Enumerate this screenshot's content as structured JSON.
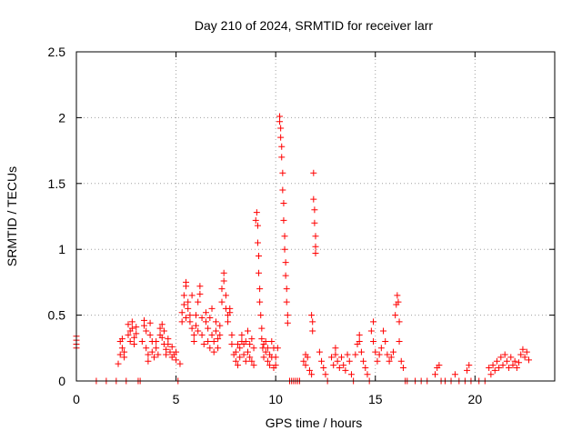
{
  "chart_data": {
    "type": "scatter",
    "title": "Day 210 of 2024, SRMTID for receiver larr",
    "xlabel": "GPS time / hours",
    "ylabel": "SRMTID / TECUs",
    "xlim": [
      0,
      24
    ],
    "ylim": [
      0,
      2.5
    ],
    "xticks": [
      0,
      5,
      10,
      15,
      20
    ],
    "xtick_labels": [
      "0",
      "5",
      "10",
      "15",
      "20"
    ],
    "yticks": [
      0,
      0.5,
      1,
      1.5,
      2,
      2.5
    ],
    "ytick_labels": [
      "0",
      "0.5",
      "1",
      "1.5",
      "2",
      "2.5"
    ],
    "grid": true,
    "marker": "+",
    "series": [
      {
        "name": "SRMTID",
        "color": "#ff0000",
        "points": [
          [
            0.0,
            0.34
          ],
          [
            0.0,
            0.31
          ],
          [
            0.0,
            0.28
          ],
          [
            0.0,
            0.25
          ],
          [
            1.0,
            0.0
          ],
          [
            1.5,
            0.0
          ],
          [
            2.0,
            0.0
          ],
          [
            2.1,
            0.13
          ],
          [
            2.2,
            0.2
          ],
          [
            2.2,
            0.3
          ],
          [
            2.3,
            0.25
          ],
          [
            2.3,
            0.32
          ],
          [
            2.4,
            0.22
          ],
          [
            2.4,
            0.18
          ],
          [
            2.5,
            0.0
          ],
          [
            2.6,
            0.35
          ],
          [
            2.6,
            0.43
          ],
          [
            2.7,
            0.38
          ],
          [
            2.7,
            0.3
          ],
          [
            2.8,
            0.45
          ],
          [
            2.8,
            0.4
          ],
          [
            2.9,
            0.33
          ],
          [
            2.9,
            0.28
          ],
          [
            3.0,
            0.36
          ],
          [
            3.0,
            0.41
          ],
          [
            3.1,
            0.0
          ],
          [
            3.2,
            0.0
          ],
          [
            3.3,
            0.3
          ],
          [
            3.4,
            0.42
          ],
          [
            3.4,
            0.46
          ],
          [
            3.5,
            0.38
          ],
          [
            3.5,
            0.25
          ],
          [
            3.6,
            0.2
          ],
          [
            3.6,
            0.15
          ],
          [
            3.7,
            0.35
          ],
          [
            3.7,
            0.44
          ],
          [
            3.8,
            0.3
          ],
          [
            3.8,
            0.22
          ],
          [
            3.9,
            0.18
          ],
          [
            4.0,
            0.25
          ],
          [
            4.0,
            0.3
          ],
          [
            4.1,
            0.2
          ],
          [
            4.2,
            0.35
          ],
          [
            4.2,
            0.4
          ],
          [
            4.3,
            0.43
          ],
          [
            4.3,
            0.33
          ],
          [
            4.4,
            0.38
          ],
          [
            4.4,
            0.28
          ],
          [
            4.5,
            0.24
          ],
          [
            4.5,
            0.2
          ],
          [
            4.6,
            0.32
          ],
          [
            4.6,
            0.28
          ],
          [
            4.7,
            0.22
          ],
          [
            4.8,
            0.18
          ],
          [
            4.8,
            0.26
          ],
          [
            4.9,
            0.2
          ],
          [
            5.0,
            0.16
          ],
          [
            5.0,
            0.22
          ],
          [
            5.1,
            0.0
          ],
          [
            5.2,
            0.13
          ],
          [
            5.3,
            0.45
          ],
          [
            5.3,
            0.52
          ],
          [
            5.4,
            0.58
          ],
          [
            5.4,
            0.65
          ],
          [
            5.5,
            0.72
          ],
          [
            5.5,
            0.75
          ],
          [
            5.5,
            0.48
          ],
          [
            5.6,
            0.55
          ],
          [
            5.6,
            0.6
          ],
          [
            5.7,
            0.5
          ],
          [
            5.7,
            0.45
          ],
          [
            5.8,
            0.65
          ],
          [
            5.8,
            0.4
          ],
          [
            5.9,
            0.35
          ],
          [
            5.9,
            0.3
          ],
          [
            6.0,
            0.42
          ],
          [
            6.0,
            0.5
          ],
          [
            6.1,
            0.38
          ],
          [
            6.1,
            0.6
          ],
          [
            6.2,
            0.66
          ],
          [
            6.2,
            0.72
          ],
          [
            6.3,
            0.48
          ],
          [
            6.3,
            0.35
          ],
          [
            6.4,
            0.28
          ],
          [
            6.5,
            0.45
          ],
          [
            6.5,
            0.52
          ],
          [
            6.6,
            0.4
          ],
          [
            6.6,
            0.3
          ],
          [
            6.7,
            0.25
          ],
          [
            6.7,
            0.48
          ],
          [
            6.8,
            0.55
          ],
          [
            6.8,
            0.35
          ],
          [
            6.9,
            0.3
          ],
          [
            6.9,
            0.22
          ],
          [
            7.0,
            0.38
          ],
          [
            7.0,
            0.45
          ],
          [
            7.1,
            0.32
          ],
          [
            7.1,
            0.25
          ],
          [
            7.2,
            0.42
          ],
          [
            7.2,
            0.35
          ],
          [
            7.3,
            0.6
          ],
          [
            7.3,
            0.7
          ],
          [
            7.4,
            0.76
          ],
          [
            7.4,
            0.82
          ],
          [
            7.5,
            0.65
          ],
          [
            7.5,
            0.55
          ],
          [
            7.6,
            0.5
          ],
          [
            7.6,
            0.45
          ],
          [
            7.7,
            0.55
          ],
          [
            7.7,
            0.52
          ],
          [
            7.8,
            0.35
          ],
          [
            7.8,
            0.28
          ],
          [
            7.9,
            0.2
          ],
          [
            8.0,
            0.15
          ],
          [
            8.0,
            0.22
          ],
          [
            8.1,
            0.28
          ],
          [
            8.1,
            0.12
          ],
          [
            8.2,
            0.18
          ],
          [
            8.2,
            0.25
          ],
          [
            8.3,
            0.3
          ],
          [
            8.3,
            0.35
          ],
          [
            8.4,
            0.28
          ],
          [
            8.4,
            0.2
          ],
          [
            8.5,
            0.15
          ],
          [
            8.5,
            0.3
          ],
          [
            8.6,
            0.38
          ],
          [
            8.6,
            0.22
          ],
          [
            8.7,
            0.18
          ],
          [
            8.7,
            0.28
          ],
          [
            8.8,
            0.32
          ],
          [
            8.8,
            0.15
          ],
          [
            8.9,
            0.12
          ],
          [
            8.9,
            0.25
          ],
          [
            9.0,
            1.22
          ],
          [
            9.05,
            1.28
          ],
          [
            9.1,
            1.18
          ],
          [
            9.1,
            1.05
          ],
          [
            9.15,
            0.95
          ],
          [
            9.15,
            0.82
          ],
          [
            9.2,
            0.7
          ],
          [
            9.2,
            0.6
          ],
          [
            9.25,
            0.5
          ],
          [
            9.3,
            0.4
          ],
          [
            9.3,
            0.32
          ],
          [
            9.35,
            0.25
          ],
          [
            9.4,
            0.18
          ],
          [
            9.4,
            0.28
          ],
          [
            9.5,
            0.22
          ],
          [
            9.5,
            0.3
          ],
          [
            9.6,
            0.15
          ],
          [
            9.6,
            0.25
          ],
          [
            9.7,
            0.2
          ],
          [
            9.7,
            0.12
          ],
          [
            9.8,
            0.3
          ],
          [
            9.8,
            0.18
          ],
          [
            9.9,
            0.25
          ],
          [
            9.9,
            0.1
          ],
          [
            10.0,
            0.18
          ],
          [
            10.0,
            0.12
          ],
          [
            10.1,
            0.25
          ],
          [
            10.2,
            2.01
          ],
          [
            10.2,
            1.97
          ],
          [
            10.25,
            1.92
          ],
          [
            10.25,
            1.85
          ],
          [
            10.3,
            1.78
          ],
          [
            10.3,
            1.7
          ],
          [
            10.35,
            1.58
          ],
          [
            10.35,
            1.45
          ],
          [
            10.4,
            1.35
          ],
          [
            10.4,
            1.22
          ],
          [
            10.45,
            1.1
          ],
          [
            10.45,
            1.0
          ],
          [
            10.5,
            0.9
          ],
          [
            10.5,
            0.8
          ],
          [
            10.55,
            0.7
          ],
          [
            10.55,
            0.6
          ],
          [
            10.6,
            0.5
          ],
          [
            10.6,
            0.44
          ],
          [
            10.7,
            0.0
          ],
          [
            10.8,
            0.0
          ],
          [
            10.9,
            0.0
          ],
          [
            11.0,
            0.0
          ],
          [
            11.1,
            0.0
          ],
          [
            11.2,
            0.0
          ],
          [
            11.4,
            0.15
          ],
          [
            11.5,
            0.2
          ],
          [
            11.5,
            0.12
          ],
          [
            11.6,
            0.18
          ],
          [
            11.7,
            0.08
          ],
          [
            11.8,
            0.05
          ],
          [
            11.8,
            0.5
          ],
          [
            11.85,
            0.45
          ],
          [
            11.85,
            0.38
          ],
          [
            11.9,
            1.58
          ],
          [
            11.9,
            1.38
          ],
          [
            11.95,
            1.3
          ],
          [
            11.95,
            1.2
          ],
          [
            12.0,
            1.1
          ],
          [
            12.0,
            1.02
          ],
          [
            12.0,
            0.97
          ],
          [
            12.2,
            0.22
          ],
          [
            12.3,
            0.15
          ],
          [
            12.4,
            0.1
          ],
          [
            12.5,
            0.05
          ],
          [
            12.6,
            0.0
          ],
          [
            12.8,
            0.18
          ],
          [
            12.9,
            0.12
          ],
          [
            13.0,
            0.25
          ],
          [
            13.0,
            0.2
          ],
          [
            13.1,
            0.15
          ],
          [
            13.2,
            0.1
          ],
          [
            13.3,
            0.18
          ],
          [
            13.4,
            0.12
          ],
          [
            13.5,
            0.08
          ],
          [
            13.6,
            0.2
          ],
          [
            13.7,
            0.15
          ],
          [
            13.8,
            0.05
          ],
          [
            13.9,
            0.0
          ],
          [
            14.0,
            0.2
          ],
          [
            14.1,
            0.28
          ],
          [
            14.2,
            0.35
          ],
          [
            14.2,
            0.3
          ],
          [
            14.3,
            0.22
          ],
          [
            14.4,
            0.15
          ],
          [
            14.5,
            0.1
          ],
          [
            14.6,
            0.05
          ],
          [
            14.7,
            0.0
          ],
          [
            14.8,
            0.38
          ],
          [
            14.9,
            0.45
          ],
          [
            14.9,
            0.3
          ],
          [
            15.0,
            0.22
          ],
          [
            15.1,
            0.15
          ],
          [
            15.2,
            0.2
          ],
          [
            15.3,
            0.25
          ],
          [
            15.4,
            0.38
          ],
          [
            15.5,
            0.3
          ],
          [
            15.6,
            0.2
          ],
          [
            15.7,
            0.15
          ],
          [
            15.8,
            0.18
          ],
          [
            15.9,
            0.22
          ],
          [
            16.0,
            0.5
          ],
          [
            16.05,
            0.58
          ],
          [
            16.1,
            0.65
          ],
          [
            16.15,
            0.6
          ],
          [
            16.2,
            0.45
          ],
          [
            16.2,
            0.3
          ],
          [
            16.3,
            0.15
          ],
          [
            16.4,
            0.1
          ],
          [
            16.5,
            0.0
          ],
          [
            16.6,
            0.0
          ],
          [
            17.0,
            0.0
          ],
          [
            17.3,
            0.0
          ],
          [
            17.6,
            0.0
          ],
          [
            18.0,
            0.05
          ],
          [
            18.1,
            0.1
          ],
          [
            18.2,
            0.12
          ],
          [
            18.3,
            0.0
          ],
          [
            18.5,
            0.0
          ],
          [
            18.8,
            0.0
          ],
          [
            19.0,
            0.05
          ],
          [
            19.2,
            0.0
          ],
          [
            19.5,
            0.0
          ],
          [
            19.6,
            0.08
          ],
          [
            19.7,
            0.12
          ],
          [
            19.8,
            0.0
          ],
          [
            20.2,
            0.0
          ],
          [
            20.5,
            0.0
          ],
          [
            20.7,
            0.1
          ],
          [
            20.8,
            0.05
          ],
          [
            20.9,
            0.12
          ],
          [
            21.0,
            0.08
          ],
          [
            21.1,
            0.15
          ],
          [
            21.2,
            0.1
          ],
          [
            21.3,
            0.18
          ],
          [
            21.4,
            0.12
          ],
          [
            21.5,
            0.2
          ],
          [
            21.6,
            0.15
          ],
          [
            21.7,
            0.1
          ],
          [
            21.8,
            0.18
          ],
          [
            21.9,
            0.12
          ],
          [
            22.0,
            0.15
          ],
          [
            22.1,
            0.1
          ],
          [
            22.2,
            0.14
          ],
          [
            22.3,
            0.2
          ],
          [
            22.4,
            0.24
          ],
          [
            22.5,
            0.18
          ],
          [
            22.6,
            0.22
          ],
          [
            22.7,
            0.16
          ]
        ]
      }
    ]
  }
}
